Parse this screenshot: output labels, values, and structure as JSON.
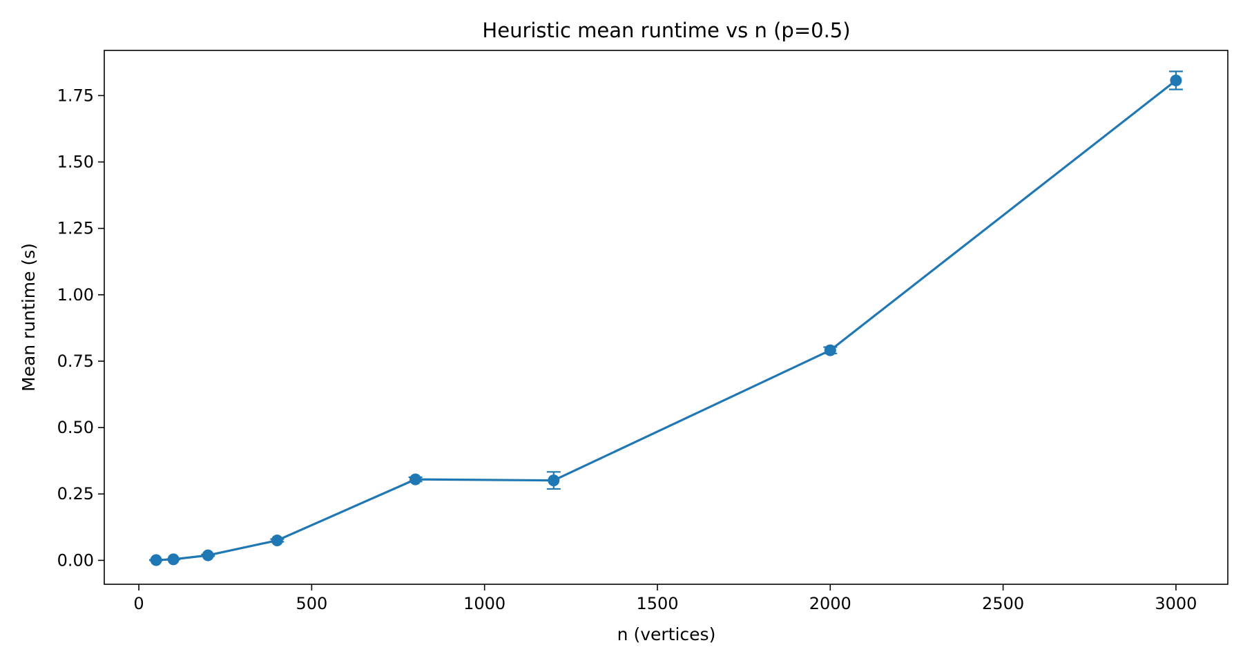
{
  "chart_data": {
    "type": "line",
    "title": "Heuristic mean runtime vs n (p=0.5)",
    "xlabel": "n (vertices)",
    "ylabel": "Mean runtime (s)",
    "xlim": [
      -100,
      3150
    ],
    "ylim": [
      -0.09,
      1.92
    ],
    "x_ticks": [
      0,
      500,
      1000,
      1500,
      2000,
      2500,
      3000
    ],
    "x_tick_labels": [
      "0",
      "500",
      "1000",
      "1500",
      "2000",
      "2500",
      "3000"
    ],
    "y_ticks": [
      0.0,
      0.25,
      0.5,
      0.75,
      1.0,
      1.25,
      1.5,
      1.75
    ],
    "y_tick_labels": [
      "0.00",
      "0.25",
      "0.50",
      "0.75",
      "1.00",
      "1.25",
      "1.50",
      "1.75"
    ],
    "grid": false,
    "color": "#1f77b4",
    "series": [
      {
        "x": [
          50,
          100,
          200,
          400,
          800,
          1200,
          2000,
          3000
        ],
        "y": [
          0.001,
          0.004,
          0.019,
          0.075,
          0.305,
          0.301,
          0.791,
          1.807
        ],
        "yerr": [
          0.001,
          0.001,
          0.003,
          0.005,
          0.008,
          0.032,
          0.012,
          0.034
        ]
      }
    ]
  }
}
